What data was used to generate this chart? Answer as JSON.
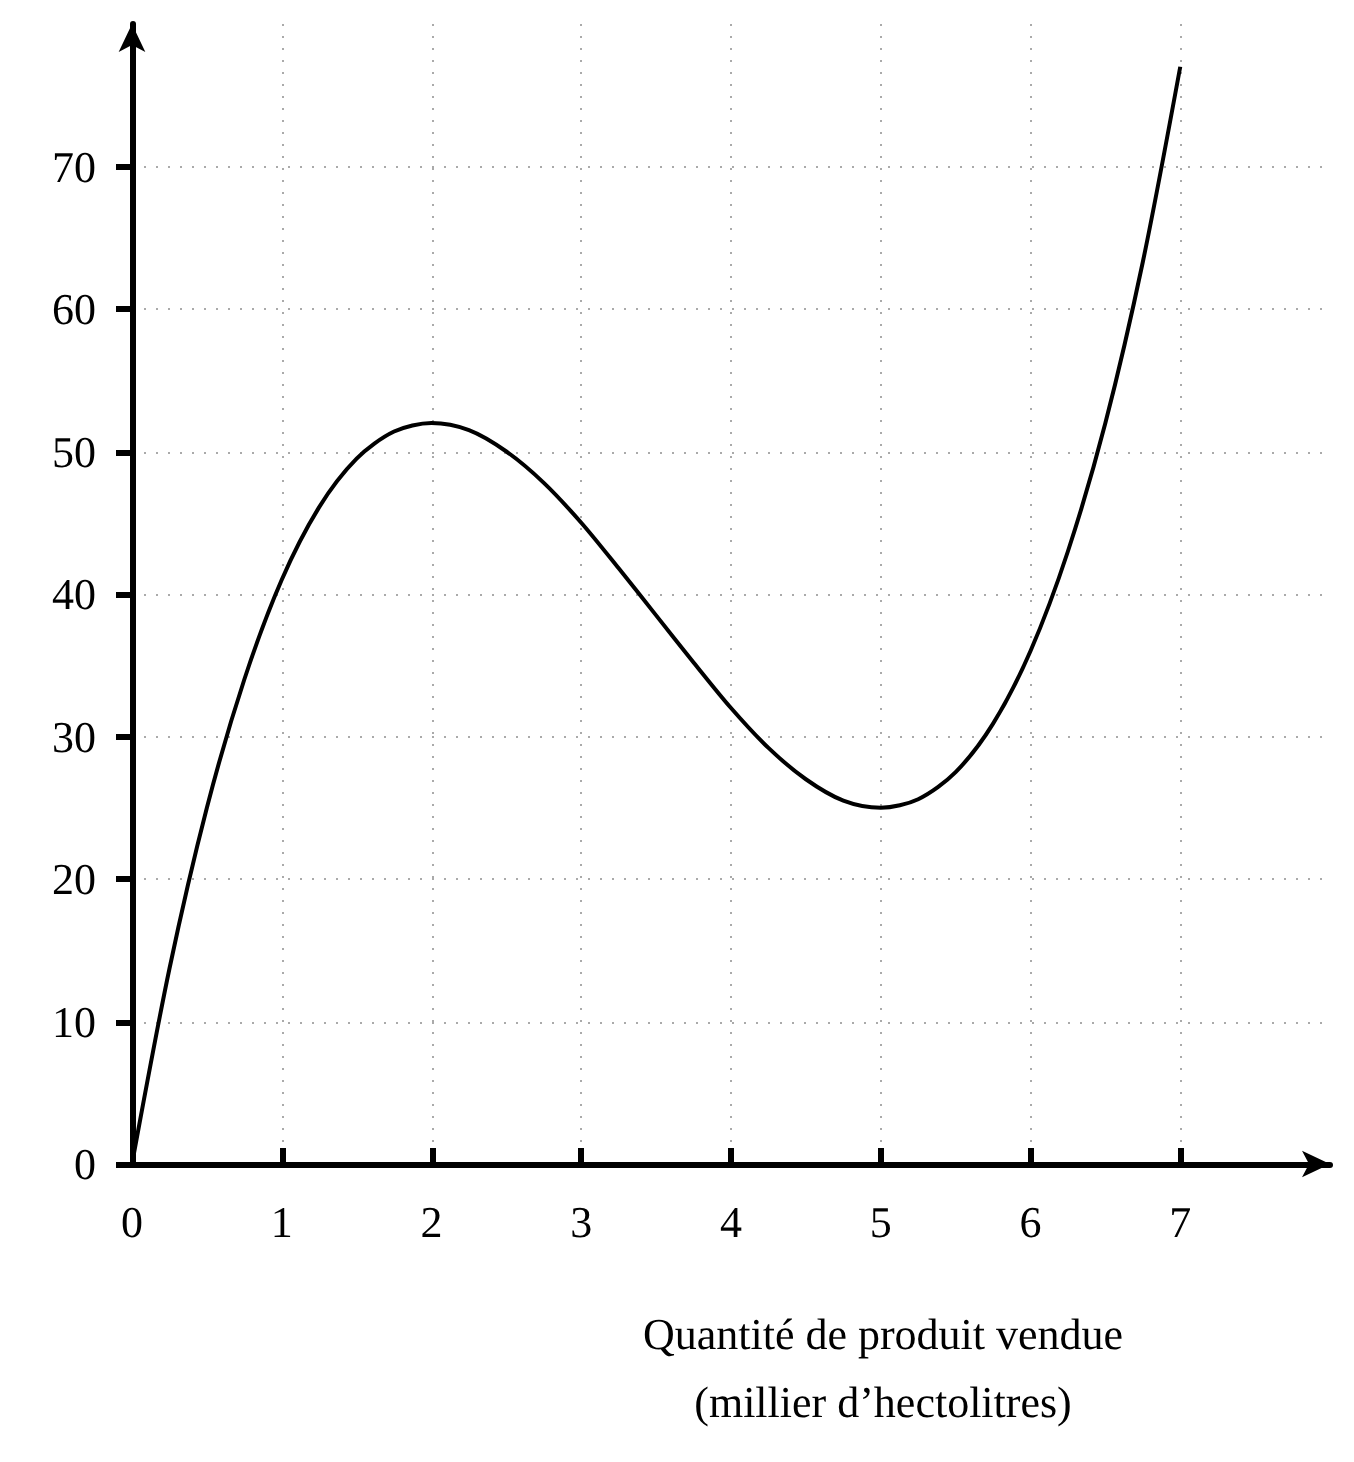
{
  "chart_data": {
    "type": "line",
    "xlabel": "Quantité de produit vendue\n(millier d’hectolitres)",
    "x": [
      0,
      0.25,
      0.5,
      0.75,
      1,
      1.25,
      1.5,
      1.75,
      2,
      2.25,
      2.5,
      2.75,
      3,
      3.25,
      3.5,
      3.75,
      4,
      4.25,
      4.5,
      4.75,
      5,
      5.25,
      5.5,
      5.75,
      6,
      6.25,
      6.5,
      6.75,
      7
    ],
    "series": [
      {
        "color": "#000000",
        "values": [
          0,
          13.7,
          25,
          34,
          41,
          46.1,
          49.5,
          51.4,
          52,
          51.5,
          50,
          47.8,
          45,
          41.8,
          38.5,
          35.2,
          32,
          29.2,
          27,
          25.5,
          25,
          25.6,
          27.5,
          30.9,
          36,
          43,
          52,
          63.3,
          77
        ]
      }
    ],
    "xlim": [
      0,
      8
    ],
    "ylim": [
      0,
      80
    ],
    "xticks": [
      0,
      1,
      2,
      3,
      4,
      5,
      6,
      7
    ],
    "yticks": [
      0,
      10,
      20,
      30,
      40,
      50,
      60,
      70
    ],
    "grid": true,
    "marker": "none",
    "line_style": "solid"
  }
}
